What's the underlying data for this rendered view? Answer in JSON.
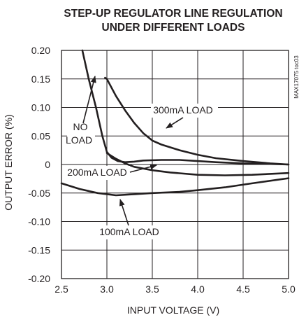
{
  "chart_data": {
    "type": "line",
    "title_lines": [
      "STEP-UP REGULATOR LINE REGULATION",
      "UNDER DIFFERENT LOADS"
    ],
    "xlabel": "INPUT VOLTAGE (V)",
    "ylabel": "OUTPUT ERROR (%)",
    "xlim": [
      2.5,
      5.0
    ],
    "ylim": [
      -0.2,
      0.2
    ],
    "x_ticks": [
      "2.5",
      "3.0",
      "3.5",
      "4.0",
      "4.5",
      "5.0"
    ],
    "y_ticks": [
      "0.20",
      "0.15",
      "0.10",
      "0.05",
      "0",
      "-0.05",
      "-0.10",
      "-0.15",
      "-0.20"
    ],
    "grid": true,
    "side_label": "MAX17075 toc03",
    "series": [
      {
        "name": "NO LOAD",
        "x": [
          2.73,
          2.8,
          2.88,
          2.95,
          3.0,
          3.05,
          3.12,
          3.2,
          3.3,
          3.4,
          3.6,
          3.8,
          4.0,
          4.2,
          4.5,
          4.8,
          5.0
        ],
        "y": [
          0.2,
          0.15,
          0.1,
          0.05,
          0.022,
          0.012,
          0.006,
          0.004,
          0.005,
          0.007,
          0.008,
          0.008,
          0.006,
          0.004,
          0.002,
          0.001,
          0.0
        ]
      },
      {
        "name": "300mA LOAD",
        "x": [
          2.98,
          3.0,
          3.1,
          3.2,
          3.3,
          3.4,
          3.5,
          3.6,
          3.8,
          4.0,
          4.2,
          4.5,
          4.8,
          5.0
        ],
        "y": [
          0.152,
          0.15,
          0.12,
          0.095,
          0.073,
          0.055,
          0.042,
          0.035,
          0.025,
          0.017,
          0.011,
          0.006,
          0.002,
          0.0
        ]
      },
      {
        "name": "200mA LOAD",
        "x": [
          3.0,
          3.1,
          3.2,
          3.3,
          3.5,
          3.7,
          4.0,
          4.3,
          4.6,
          5.0
        ],
        "y": [
          0.02,
          0.01,
          0.002,
          -0.004,
          -0.01,
          -0.014,
          -0.018,
          -0.019,
          -0.018,
          -0.015
        ]
      },
      {
        "name": "100mA LOAD",
        "x": [
          2.5,
          2.7,
          2.9,
          3.1,
          3.3,
          3.5,
          3.8,
          4.0,
          4.3,
          4.6,
          5.0
        ],
        "y": [
          -0.033,
          -0.043,
          -0.05,
          -0.054,
          -0.052,
          -0.05,
          -0.048,
          -0.045,
          -0.04,
          -0.033,
          -0.024
        ]
      }
    ],
    "annotations": [
      {
        "lines": [
          "NO",
          "LOAD"
        ],
        "series": "NO LOAD"
      },
      {
        "lines": [
          "300mA LOAD"
        ],
        "series": "300mA LOAD"
      },
      {
        "lines": [
          "200mA LOAD"
        ],
        "series": "200mA LOAD"
      },
      {
        "lines": [
          "100mA LOAD"
        ],
        "series": "100mA LOAD"
      }
    ]
  }
}
